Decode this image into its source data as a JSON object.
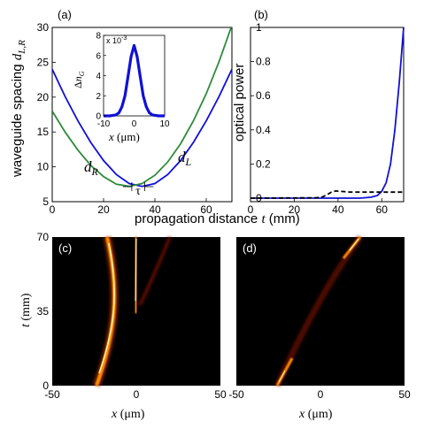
{
  "colors": {
    "blue": "#1010d8",
    "green": "#2e8b3a",
    "black": "#000000",
    "heat_bg": "#000000"
  },
  "panels": {
    "a": {
      "tag": "(a)"
    },
    "b": {
      "tag": "(b)"
    },
    "c": {
      "tag": "(c)"
    },
    "d": {
      "tag": "(d)"
    }
  },
  "chart_data": [
    {
      "id": "a",
      "type": "line",
      "ylabel": "waveguide spacing  d_L,R",
      "ylabel_main": "waveguide spacing ",
      "ylabel_sym": "d",
      "ylabel_sub": "L,R",
      "xlim": [
        0,
        70
      ],
      "ylim": [
        5,
        30
      ],
      "xticks": [
        "0",
        "20",
        "40",
        "60"
      ],
      "yticks": [
        "5",
        "10",
        "15",
        "20",
        "25",
        "30"
      ],
      "series": [
        {
          "name": "d_L",
          "color": "blue",
          "x": [
            0,
            5,
            10,
            15,
            20,
            25,
            30,
            35,
            40,
            45,
            50,
            55,
            60,
            65,
            70
          ],
          "y": [
            24.0,
            20.1,
            16.6,
            13.5,
            10.9,
            8.9,
            7.6,
            7.2,
            7.6,
            8.9,
            10.9,
            13.5,
            16.6,
            20.1,
            24.0
          ]
        },
        {
          "name": "d_R",
          "color": "green",
          "x": [
            0,
            5,
            10,
            15,
            20,
            25,
            30,
            35,
            40,
            45,
            50,
            55,
            60,
            65,
            70
          ],
          "y": [
            18.0,
            15.0,
            12.4,
            10.2,
            8.6,
            7.5,
            7.2,
            7.6,
            8.8,
            10.7,
            13.3,
            16.6,
            20.5,
            25.1,
            30.3
          ]
        }
      ],
      "annotations": {
        "dL_sym": "d",
        "dL_sub": "L",
        "dR_sym": "d",
        "dR_sub": "R",
        "tau": "τ"
      },
      "inset": {
        "xlim": [
          -10,
          10
        ],
        "ylim": [
          0,
          8
        ],
        "xticks": [
          "-10",
          "0",
          "10"
        ],
        "yticks": [
          "0",
          "2",
          "4",
          "6",
          "8"
        ],
        "scale_label": "x 10",
        "scale_exp": "-3",
        "ylabel_delta": "Δ",
        "ylabel_sym": "n",
        "ylabel_sub": "G",
        "xlabel_sym": "x",
        "xlabel_unit": " (μm)",
        "series": [
          {
            "color": "blue",
            "x": [
              -10,
              -8,
              -6,
              -5,
              -4,
              -3,
              -2,
              -1,
              0,
              1,
              2,
              3,
              4,
              5,
              6,
              8,
              10
            ],
            "y": [
              0.0,
              0.0,
              0.1,
              0.3,
              0.9,
              2.0,
              3.9,
              5.9,
              7.0,
              5.9,
              3.9,
              2.0,
              0.9,
              0.3,
              0.1,
              0.0,
              0.0
            ]
          }
        ]
      }
    },
    {
      "id": "b",
      "type": "line",
      "ylabel": "optical power",
      "xlim": [
        0,
        70
      ],
      "ylim": [
        0,
        1
      ],
      "xticks": [
        "0",
        "20",
        "40",
        "60"
      ],
      "yticks": [
        "0",
        "0.2",
        "0.4",
        "0.6",
        "0.8",
        "1"
      ],
      "series": [
        {
          "color": "blue",
          "style": "solid",
          "x": [
            0,
            50,
            55,
            58,
            60,
            62,
            64,
            66,
            68,
            70
          ],
          "y": [
            0.0,
            0.0,
            0.005,
            0.015,
            0.04,
            0.09,
            0.2,
            0.4,
            0.68,
            1.0
          ]
        },
        {
          "color": "black",
          "style": "dashed",
          "x": [
            0,
            30,
            33,
            35,
            37,
            39,
            41,
            45,
            55,
            70
          ],
          "y": [
            0.0,
            0.002,
            0.008,
            0.02,
            0.035,
            0.042,
            0.04,
            0.036,
            0.035,
            0.035
          ]
        }
      ]
    },
    {
      "id": "c",
      "type": "heatmap",
      "ylabel_sym": "t",
      "ylabel_unit": " (mm)",
      "xlim": [
        -50,
        50
      ],
      "ylim": [
        0,
        70
      ],
      "xticks": [
        "-50",
        "0",
        "50"
      ],
      "yticks": [
        "0",
        "35",
        "70"
      ]
    },
    {
      "id": "d",
      "type": "heatmap",
      "xlim": [
        -50,
        50
      ],
      "ylim": [
        0,
        70
      ],
      "xticks": [
        "-50",
        "0",
        "50"
      ]
    }
  ],
  "shared": {
    "x_label_main": "propagation distance ",
    "x_label_sym": "t",
    "x_label_unit": " (mm)",
    "x_label_um_sym": "x",
    "x_label_um_unit": " (μm)"
  }
}
